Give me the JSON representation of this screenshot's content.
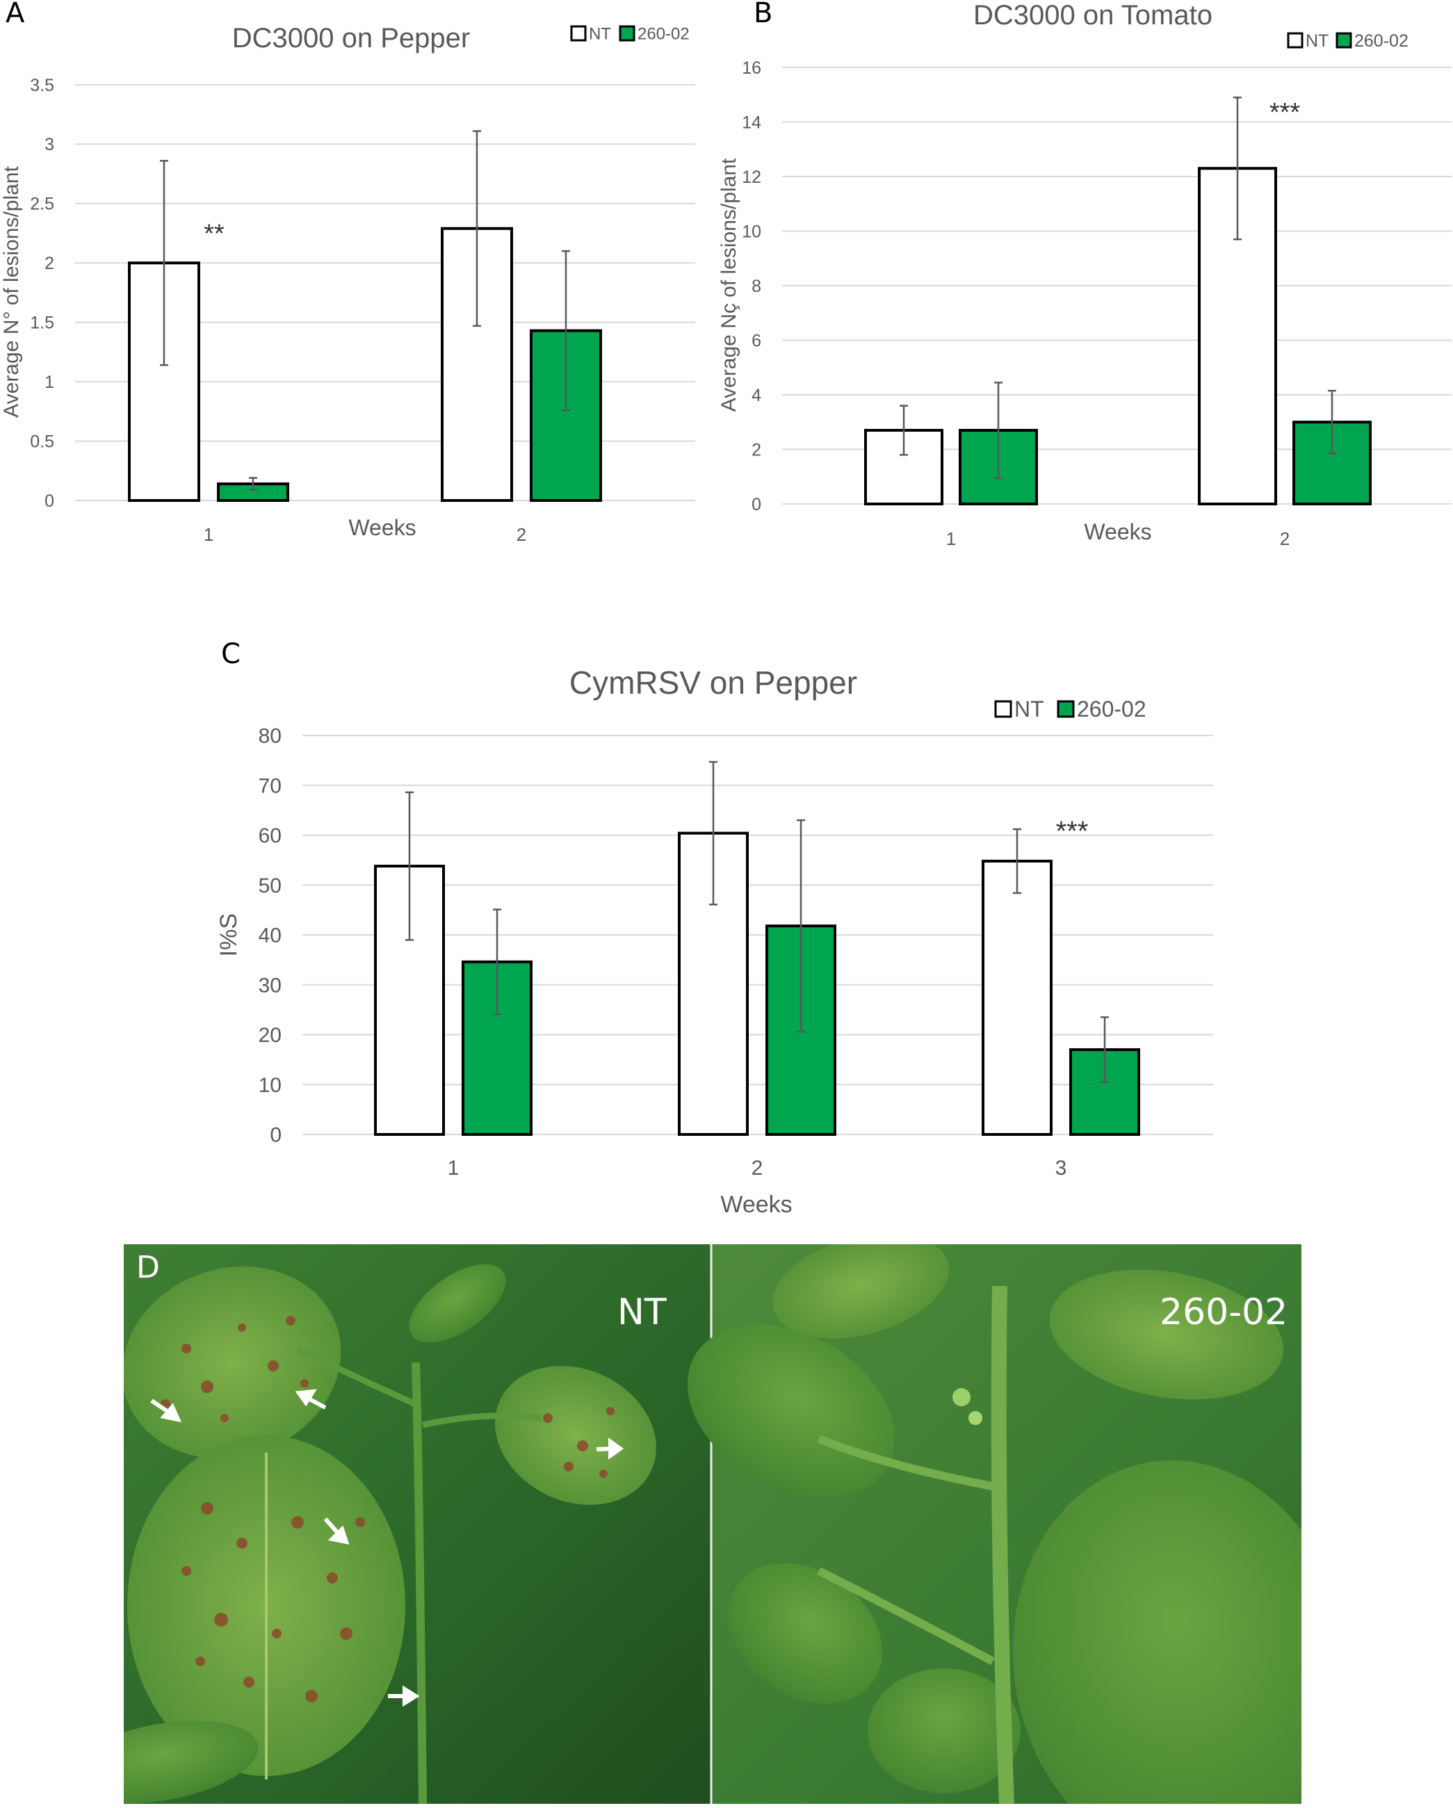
{
  "panels": {
    "a": "A",
    "b": "B",
    "c": "C",
    "d": "D"
  },
  "colors": {
    "nt_fill": "#ffffff",
    "treated_fill": "#00a64f",
    "bar_stroke": "#000000",
    "grid": "#d9d9d9",
    "tick_text": "#595959"
  },
  "chart_data": [
    {
      "type": "bar",
      "panel": "A",
      "title": "DC3000 on Pepper",
      "xlabel": "Weeks",
      "ylabel": "Average N° of lesions/plant",
      "categories": [
        "1",
        "2"
      ],
      "ylim": [
        0,
        3.5
      ],
      "yticks": [
        "0",
        "0.5",
        "1",
        "1.5",
        "2",
        "2.5",
        "3",
        "3.5"
      ],
      "yticks_values": [
        0,
        0.5,
        1,
        1.5,
        2,
        2.5,
        3,
        3.5
      ],
      "grid": true,
      "legend": "top-right",
      "series": [
        {
          "name": "NT",
          "values": [
            2.0,
            2.29
          ],
          "errors": [
            0.86,
            0.82
          ]
        },
        {
          "name": "260-02",
          "values": [
            0.14,
            1.43
          ],
          "errors": [
            0.05,
            0.67
          ]
        }
      ],
      "annotations": [
        {
          "text": "**",
          "category": 0
        }
      ]
    },
    {
      "type": "bar",
      "panel": "B",
      "title": "DC3000 on Tomato",
      "xlabel": "Weeks",
      "ylabel": "Average Nç of lesions/plant",
      "categories": [
        "1",
        "2"
      ],
      "ylim": [
        0,
        16
      ],
      "yticks": [
        "0",
        "2",
        "4",
        "6",
        "8",
        "10",
        "12",
        "14",
        "16"
      ],
      "yticks_values": [
        0,
        2,
        4,
        6,
        8,
        10,
        12,
        14,
        16
      ],
      "grid": true,
      "legend": "top-right",
      "series": [
        {
          "name": "NT",
          "values": [
            2.7,
            12.3
          ],
          "errors": [
            0.9,
            2.6
          ]
        },
        {
          "name": "260-02",
          "values": [
            2.7,
            3.0
          ],
          "errors": [
            1.75,
            1.15
          ]
        }
      ],
      "annotations": [
        {
          "text": "***",
          "category": 1
        }
      ]
    },
    {
      "type": "bar",
      "panel": "C",
      "title": "CymRSV on Pepper",
      "xlabel": "Weeks",
      "ylabel": "I%S",
      "categories": [
        "1",
        "2",
        "3"
      ],
      "ylim": [
        0,
        80
      ],
      "yticks": [
        "0",
        "10",
        "20",
        "30",
        "40",
        "50",
        "60",
        "70",
        "80"
      ],
      "yticks_values": [
        0,
        10,
        20,
        30,
        40,
        50,
        60,
        70,
        80
      ],
      "grid": true,
      "legend": "top-right",
      "series": [
        {
          "name": "NT",
          "values": [
            53.8,
            60.4,
            54.8
          ],
          "errors": [
            14.8,
            14.3,
            6.4
          ]
        },
        {
          "name": "260-02",
          "values": [
            34.6,
            41.8,
            17.0
          ],
          "errors": [
            10.5,
            21.2,
            6.5
          ]
        }
      ],
      "annotations": [
        {
          "text": "***",
          "category": 2
        }
      ]
    }
  ],
  "photo": {
    "left_label": "NT",
    "right_label": "260-02"
  }
}
